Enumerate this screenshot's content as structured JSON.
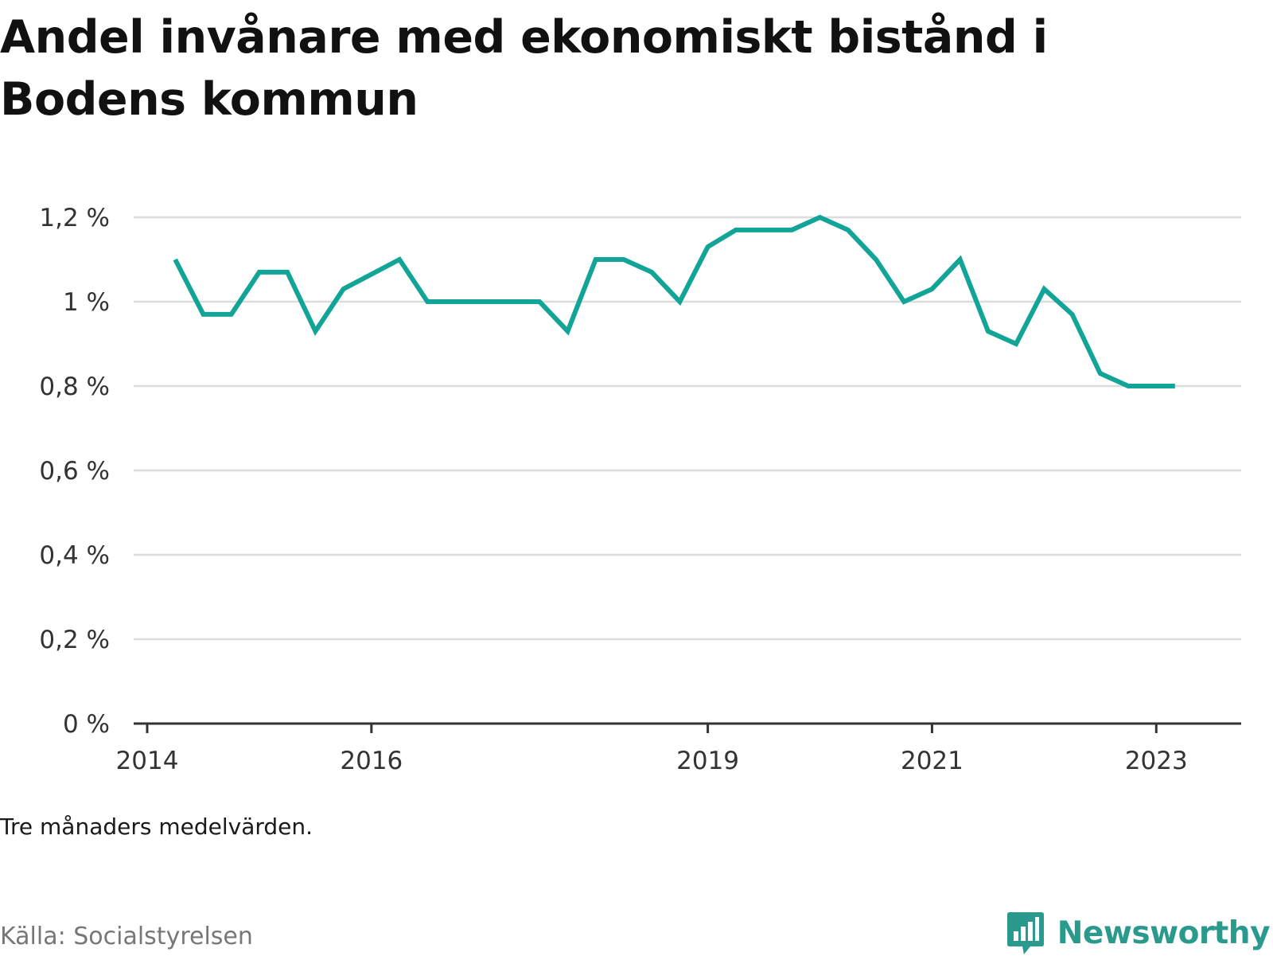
{
  "chart_data": {
    "type": "line",
    "title": "Andel invånare med ekonomiskt bistånd i Bodens kommun",
    "note": "Tre månaders medelvärden.",
    "source": "Källa: Socialstyrelsen",
    "brand": "Newsworthy",
    "line_color": "#12a597",
    "ylim": [
      0,
      1.2
    ],
    "yticks": [
      {
        "value": 0,
        "label": "0 %"
      },
      {
        "value": 0.2,
        "label": "0,2 %"
      },
      {
        "value": 0.4,
        "label": "0,4 %"
      },
      {
        "value": 0.6,
        "label": "0,6 %"
      },
      {
        "value": 0.8,
        "label": "0,8 %"
      },
      {
        "value": 1.0,
        "label": "1 %"
      },
      {
        "value": 1.2,
        "label": "1,2 %"
      }
    ],
    "xlim": [
      "2014-01",
      "2023-06"
    ],
    "xticks": [
      {
        "value": "2014-01",
        "label": "2014"
      },
      {
        "value": "2016-01",
        "label": "2016"
      },
      {
        "value": "2019-01",
        "label": "2019"
      },
      {
        "value": "2021-01",
        "label": "2021"
      },
      {
        "value": "2023-01",
        "label": "2023"
      }
    ],
    "grid": true,
    "series": [
      {
        "points": [
          {
            "x": "2014-04",
            "y": 1.1
          },
          {
            "x": "2014-07",
            "y": 0.97
          },
          {
            "x": "2014-10",
            "y": 0.97
          },
          {
            "x": "2015-01",
            "y": 1.07
          },
          {
            "x": "2015-04",
            "y": 1.07
          },
          {
            "x": "2015-07",
            "y": 0.93
          },
          {
            "x": "2015-10",
            "y": 1.03
          },
          {
            "x": "2016-04",
            "y": 1.1
          },
          {
            "x": "2016-07",
            "y": 1.0
          },
          {
            "x": "2016-10",
            "y": 1.0
          },
          {
            "x": "2017-01",
            "y": 1.0
          },
          {
            "x": "2017-04",
            "y": 1.0
          },
          {
            "x": "2017-07",
            "y": 1.0
          },
          {
            "x": "2017-10",
            "y": 0.93
          },
          {
            "x": "2018-01",
            "y": 1.1
          },
          {
            "x": "2018-04",
            "y": 1.1
          },
          {
            "x": "2018-07",
            "y": 1.07
          },
          {
            "x": "2018-10",
            "y": 1.0
          },
          {
            "x": "2019-01",
            "y": 1.13
          },
          {
            "x": "2019-04",
            "y": 1.17
          },
          {
            "x": "2019-07",
            "y": 1.17
          },
          {
            "x": "2019-10",
            "y": 1.17
          },
          {
            "x": "2020-01",
            "y": 1.2
          },
          {
            "x": "2020-04",
            "y": 1.17
          },
          {
            "x": "2020-07",
            "y": 1.1
          },
          {
            "x": "2020-10",
            "y": 1.0
          },
          {
            "x": "2021-01",
            "y": 1.03
          },
          {
            "x": "2021-04",
            "y": 1.1
          },
          {
            "x": "2021-07",
            "y": 0.93
          },
          {
            "x": "2021-10",
            "y": 0.9
          },
          {
            "x": "2022-01",
            "y": 1.03
          },
          {
            "x": "2022-04",
            "y": 0.97
          },
          {
            "x": "2022-07",
            "y": 0.83
          },
          {
            "x": "2022-10",
            "y": 0.8
          },
          {
            "x": "2023-01",
            "y": 0.8
          },
          {
            "x": "2023-03",
            "y": 0.8
          }
        ]
      }
    ]
  }
}
